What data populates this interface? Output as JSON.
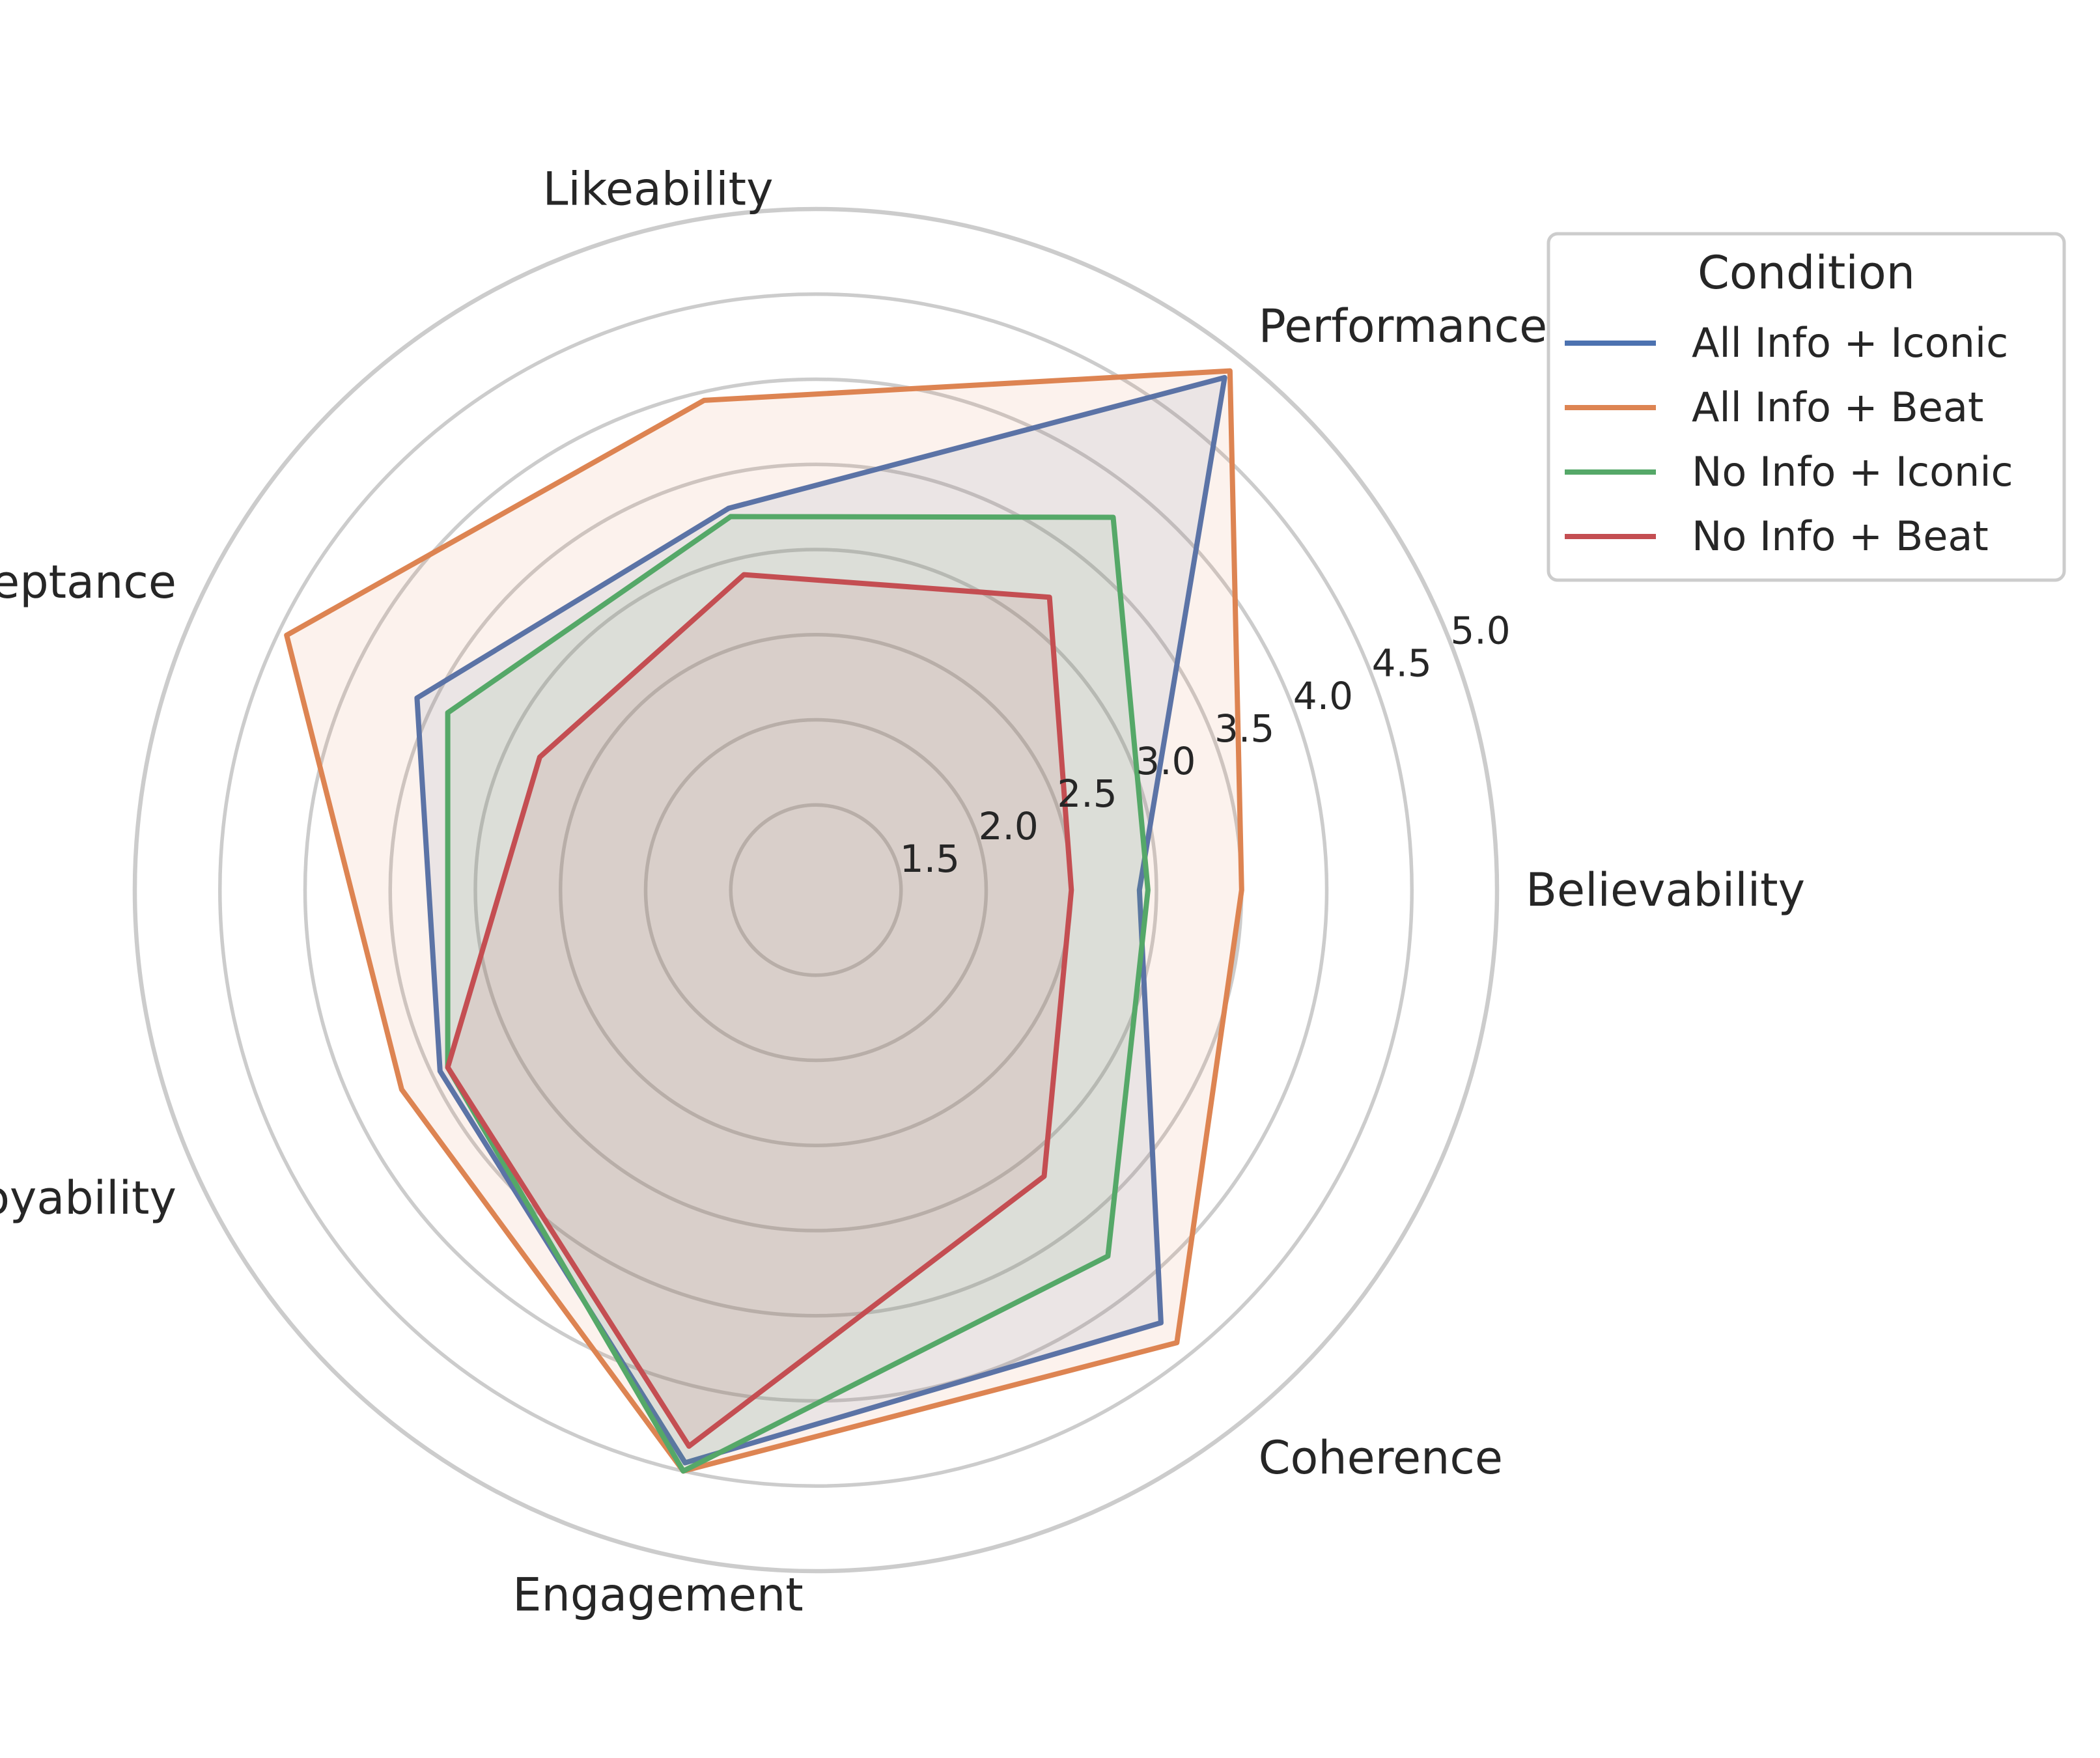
{
  "chart_data": {
    "type": "radar",
    "title": "",
    "axes": [
      "Believability",
      "Performance",
      "Likeability",
      "Acceptance",
      "Enjoyability",
      "Engagement",
      "Coherence"
    ],
    "rlim": [
      1,
      5
    ],
    "rticks": [
      1.5,
      2.0,
      2.5,
      3.0,
      3.5,
      4.0,
      4.5,
      5.0
    ],
    "rtick_labels": [
      "1.5",
      "2.0",
      "2.5",
      "3.0",
      "3.5",
      "4.0",
      "4.5",
      "5.0"
    ],
    "grid": true,
    "legend": {
      "title": "Condition",
      "position": "top-right, outside plot"
    },
    "series": [
      {
        "name": "All Info + Iconic",
        "color": "#4c72b0",
        "values": [
          2.9,
          4.85,
          3.3,
          3.6,
          3.45,
          4.45,
          4.25
        ]
      },
      {
        "name": "All Info + Beat",
        "color": "#dd8452",
        "values": [
          3.5,
          4.9,
          3.95,
          4.45,
          3.7,
          4.5,
          4.4
        ]
      },
      {
        "name": "No Info + Iconic",
        "color": "#55a868",
        "values": [
          2.95,
          3.8,
          3.25,
          3.4,
          3.4,
          4.5,
          3.75
        ]
      },
      {
        "name": "No Info + Beat",
        "color": "#c44e52",
        "values": [
          2.5,
          3.2,
          2.9,
          2.8,
          3.4,
          4.35,
          3.15
        ]
      }
    ]
  }
}
